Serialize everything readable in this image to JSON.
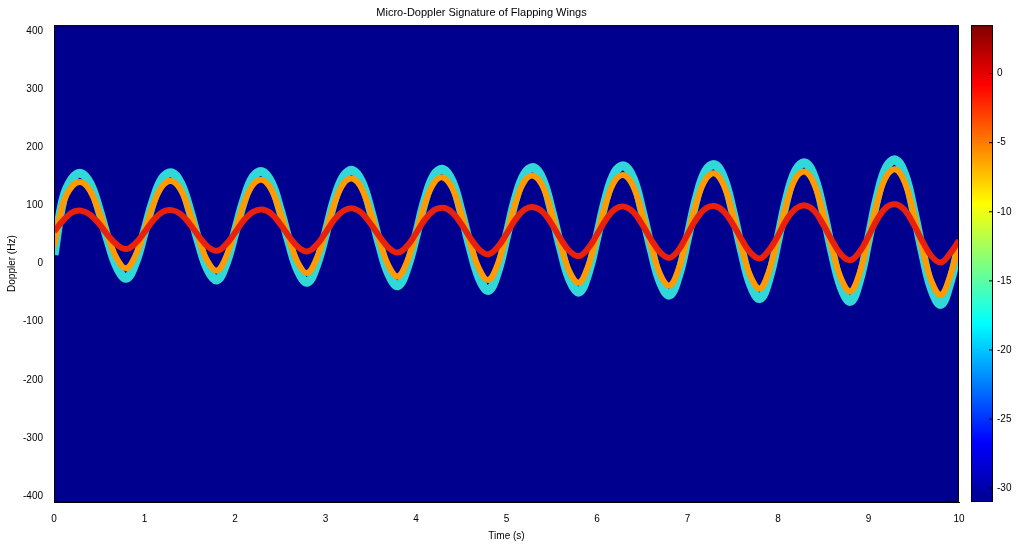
{
  "chart_data": {
    "type": "line",
    "title": "Micro-Doppler Signature of Flapping Wings",
    "x_label": "Time (s)",
    "y_label": "Doppler (Hz)",
    "x": [
      0,
      0.1,
      0.2,
      0.3,
      0.4,
      0.5,
      0.6,
      0.7,
      0.8,
      0.9,
      1,
      1.1,
      1.2,
      1.3,
      1.4,
      1.5,
      1.6,
      1.7,
      1.8,
      1.9,
      2,
      2.1,
      2.2,
      2.3,
      2.4,
      2.5,
      2.6,
      2.7,
      2.8,
      2.9,
      3,
      3.1,
      3.2,
      3.3,
      3.4,
      3.5,
      3.6,
      3.7,
      3.8,
      3.9,
      4,
      4.1,
      4.2,
      4.3,
      4.4,
      4.5,
      4.6,
      4.7,
      4.8,
      4.9,
      5,
      5.1,
      5.2,
      5.3,
      5.4,
      5.5,
      5.6,
      5.7,
      5.8,
      5.9,
      6,
      6.1,
      6.2,
      6.3,
      6.4,
      6.5,
      6.6,
      6.7,
      6.8,
      6.9,
      7,
      7.1,
      7.2,
      7.3,
      7.4,
      7.5,
      7.6,
      7.7,
      7.8,
      7.9,
      8,
      8.1,
      8.2,
      8.3,
      8.4,
      8.5,
      8.6,
      8.7,
      8.8,
      8.9,
      9,
      9.1,
      9.2,
      9.3,
      9.4,
      9.5,
      9.6,
      9.7,
      9.8,
      9.9,
      10
    ],
    "series": [
      {
        "color": "#30d8d8",
        "values": [
          15,
          110,
          146,
          155,
          137,
          92,
          38,
          -7,
          -25,
          2,
          55,
          110,
          147,
          156,
          138,
          92,
          36,
          -10,
          -28,
          0,
          54,
          110,
          149,
          158,
          139,
          92,
          35,
          -13,
          -32,
          -3,
          51,
          111,
          150,
          160,
          140,
          91,
          31,
          -18,
          -38,
          -8,
          48,
          110,
          152,
          162,
          141,
          89,
          27,
          -25,
          -46,
          -15,
          47,
          112,
          154,
          165,
          144,
          90,
          26,
          -28,
          -49,
          -17,
          46,
          113,
          157,
          168,
          146,
          90,
          24,
          -32,
          -54,
          -21,
          44,
          113,
          159,
          170,
          147,
          90,
          21,
          -37,
          -60,
          -26,
          42,
          114,
          161,
          173,
          149,
          90,
          18,
          -41,
          -65,
          -29,
          42,
          116,
          166,
          178,
          153,
          91,
          17,
          -45,
          -70,
          -33,
          30
        ]
      },
      {
        "color": "#ff9a00",
        "values": [
          30,
          103,
          133,
          140,
          125,
          88,
          44,
          7,
          -8,
          14,
          57,
          103,
          134,
          142,
          127,
          88,
          42,
          3,
          -12,
          11,
          56,
          104,
          136,
          144,
          128,
          88,
          40,
          0,
          -16,
          8,
          54,
          104,
          138,
          146,
          129,
          87,
          37,
          -5,
          -22,
          3,
          51,
          104,
          139,
          148,
          130,
          86,
          34,
          -10,
          -28,
          -2,
          50,
          105,
          142,
          151,
          133,
          87,
          31,
          -15,
          -33,
          -5,
          48,
          105,
          143,
          152,
          133,
          86,
          29,
          -19,
          -38,
          -10,
          46,
          106,
          145,
          155,
          135,
          86,
          26,
          -23,
          -43,
          -13,
          45,
          107,
          148,
          158,
          137,
          86,
          24,
          -27,
          -48,
          -17,
          43,
          108,
          151,
          162,
          140,
          86,
          22,
          -32,
          -54,
          -22,
          35
        ]
      },
      {
        "color": "#e8200c",
        "values": [
          55,
          74,
          88,
          91,
          84,
          68,
          48,
          32,
          25,
          35,
          54,
          75,
          89,
          92,
          85,
          68,
          47,
          29,
          22,
          33,
          53,
          75,
          89,
          93,
          86,
          68,
          46,
          28,
          21,
          32,
          53,
          76,
          91,
          95,
          87,
          68,
          46,
          27,
          19,
          30,
          52,
          76,
          92,
          96,
          88,
          68,
          44,
          24,
          16,
          28,
          51,
          76,
          93,
          97,
          89,
          68,
          42,
          21,
          13,
          26,
          50,
          76,
          94,
          98,
          89,
          67,
          41,
          19,
          10,
          23,
          50,
          77,
          95,
          99,
          90,
          68,
          41,
          18,
          9,
          23,
          48,
          77,
          95,
          100,
          91,
          67,
          39,
          15,
          6,
          20,
          47,
          77,
          97,
          102,
          92,
          67,
          37,
          12,
          2,
          17,
          40
        ]
      }
    ],
    "xlim": [
      0,
      10
    ],
    "xticks": [
      0,
      1,
      2,
      3,
      4,
      5,
      6,
      7,
      8,
      9,
      10
    ],
    "ylim": [
      -410,
      410
    ],
    "yticks": [
      -400,
      -300,
      -200,
      -100,
      0,
      100,
      200,
      300,
      400
    ],
    "grid": false,
    "colorbar": {
      "range": [
        -31,
        3.5
      ],
      "ticks": [
        0,
        -5,
        -10,
        -15,
        -20,
        -25,
        -30
      ]
    }
  }
}
